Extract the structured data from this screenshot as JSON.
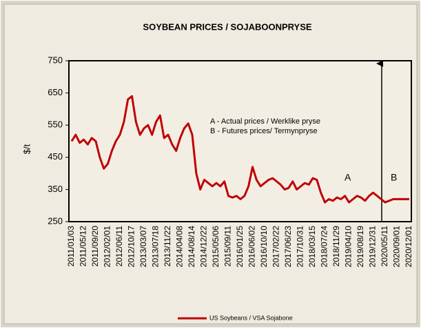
{
  "chart_data": {
    "type": "line",
    "title": "SOYBEAN PRICES / SOJABOONPRYSE",
    "y_label": "$/t",
    "annotations": [
      "A - Actual prices / Werklike pryse",
      "B - Futures prices/ Termynpryse",
      "A",
      "B"
    ],
    "categories": [
      "2011/01/03",
      null,
      null,
      "2011/05/12",
      null,
      null,
      "2011/09/20",
      null,
      null,
      "2012/02/01",
      null,
      null,
      "2012/06/11",
      null,
      null,
      "2012/10/17",
      null,
      null,
      "2013/03/07",
      null,
      null,
      "2013/07/18",
      null,
      null,
      "2013/11/22",
      null,
      null,
      "2014/04/08",
      null,
      null,
      "2014/08/14",
      null,
      null,
      "2014/12/22",
      null,
      null,
      "2015/05/06",
      null,
      null,
      "2015/09/11",
      null,
      null,
      "2016/01/25",
      null,
      null,
      "2016/06/02",
      null,
      null,
      "2016/10/10",
      null,
      null,
      "2017/02/22",
      null,
      null,
      "2017/06/23",
      null,
      null,
      "2017/10/31",
      null,
      null,
      "2018/03/15",
      null,
      null,
      "2018/07/24",
      null,
      null,
      "2018/11/29",
      null,
      null,
      "2019/04/10",
      null,
      null,
      "2019/08/19",
      null,
      null,
      "2019/12/31",
      null,
      null,
      "2020/05/11",
      null,
      null,
      "2020/09/01",
      null,
      null,
      "2020/12/01"
    ],
    "series": [
      {
        "name": "US Soybeans / VSA Sojabone",
        "color": "#c00000",
        "values": [
          500,
          520,
          495,
          505,
          490,
          510,
          500,
          450,
          415,
          430,
          470,
          500,
          520,
          560,
          630,
          640,
          560,
          520,
          540,
          550,
          520,
          560,
          580,
          510,
          520,
          490,
          470,
          510,
          540,
          555,
          520,
          400,
          350,
          380,
          370,
          360,
          370,
          360,
          375,
          330,
          325,
          330,
          320,
          330,
          360,
          420,
          380,
          360,
          370,
          380,
          385,
          375,
          365,
          350,
          355,
          375,
          350,
          360,
          370,
          365,
          385,
          380,
          340,
          310,
          320,
          315,
          325,
          320,
          330,
          310,
          320,
          330,
          325,
          315,
          330,
          340,
          330,
          320,
          310,
          315,
          320,
          320,
          320,
          320,
          320
        ]
      }
    ],
    "ylim": [
      250,
      750
    ],
    "yticks": [
      250,
      350,
      450,
      550,
      650,
      750
    ]
  }
}
